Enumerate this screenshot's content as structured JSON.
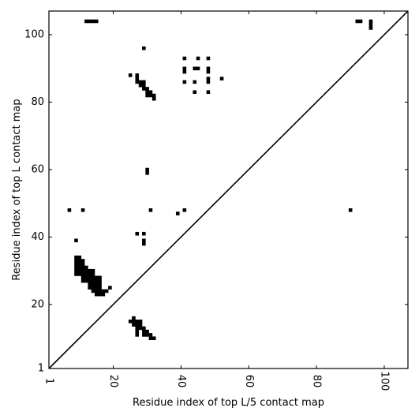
{
  "chart_data": {
    "type": "heatmap",
    "title": "",
    "xlabel": "Residue index of top L/5 contact map",
    "ylabel": "Residue index of top L contact map",
    "xlim": [
      1,
      107
    ],
    "ylim": [
      1,
      107
    ],
    "xticks": [
      1,
      20,
      40,
      60,
      80,
      100
    ],
    "yticks": [
      1,
      20,
      40,
      60,
      80,
      100
    ],
    "xtick_labels": [
      "1",
      "20",
      "40",
      "60",
      "80",
      "100"
    ],
    "ytick_labels": [
      "1",
      "20",
      "40",
      "60",
      "80",
      "100"
    ],
    "grid": false,
    "diagonal": true,
    "cell_color": "#000000",
    "cells": [
      [
        12,
        104
      ],
      [
        13,
        104
      ],
      [
        14,
        104
      ],
      [
        15,
        104
      ],
      [
        92,
        104
      ],
      [
        93,
        104
      ],
      [
        96,
        104
      ],
      [
        96,
        103
      ],
      [
        96,
        102
      ],
      [
        29,
        96
      ],
      [
        41,
        93
      ],
      [
        45,
        93
      ],
      [
        48,
        93
      ],
      [
        41,
        90
      ],
      [
        44,
        90
      ],
      [
        45,
        90
      ],
      [
        48,
        90
      ],
      [
        41,
        89
      ],
      [
        48,
        89
      ],
      [
        25,
        88
      ],
      [
        27,
        88
      ],
      [
        27,
        87
      ],
      [
        52,
        87
      ],
      [
        48,
        87
      ],
      [
        27,
        86
      ],
      [
        28,
        86
      ],
      [
        29,
        86
      ],
      [
        41,
        86
      ],
      [
        44,
        86
      ],
      [
        48,
        86
      ],
      [
        28,
        85
      ],
      [
        29,
        85
      ],
      [
        29,
        84
      ],
      [
        30,
        84
      ],
      [
        30,
        83
      ],
      [
        31,
        83
      ],
      [
        44,
        83
      ],
      [
        48,
        83
      ],
      [
        30,
        82
      ],
      [
        31,
        82
      ],
      [
        32,
        82
      ],
      [
        32,
        81
      ],
      [
        30,
        60
      ],
      [
        30,
        59
      ],
      [
        7,
        48
      ],
      [
        11,
        48
      ],
      [
        31,
        48
      ],
      [
        41,
        48
      ],
      [
        90,
        48
      ],
      [
        39,
        47
      ],
      [
        27,
        41
      ],
      [
        29,
        41
      ],
      [
        29,
        39
      ],
      [
        29,
        38
      ],
      [
        9,
        39
      ],
      [
        9,
        34
      ],
      [
        10,
        34
      ],
      [
        9,
        33
      ],
      [
        10,
        33
      ],
      [
        11,
        33
      ],
      [
        9,
        32
      ],
      [
        10,
        32
      ],
      [
        11,
        32
      ],
      [
        9,
        31
      ],
      [
        10,
        31
      ],
      [
        11,
        31
      ],
      [
        12,
        31
      ],
      [
        9,
        30
      ],
      [
        10,
        30
      ],
      [
        11,
        30
      ],
      [
        12,
        30
      ],
      [
        13,
        30
      ],
      [
        14,
        30
      ],
      [
        9,
        29
      ],
      [
        10,
        29
      ],
      [
        11,
        29
      ],
      [
        12,
        29
      ],
      [
        13,
        29
      ],
      [
        14,
        29
      ],
      [
        11,
        28
      ],
      [
        12,
        28
      ],
      [
        13,
        28
      ],
      [
        14,
        28
      ],
      [
        15,
        28
      ],
      [
        16,
        28
      ],
      [
        11,
        27
      ],
      [
        12,
        27
      ],
      [
        13,
        27
      ],
      [
        14,
        27
      ],
      [
        15,
        27
      ],
      [
        16,
        27
      ],
      [
        13,
        26
      ],
      [
        14,
        26
      ],
      [
        15,
        26
      ],
      [
        16,
        26
      ],
      [
        13,
        25
      ],
      [
        14,
        25
      ],
      [
        15,
        25
      ],
      [
        16,
        25
      ],
      [
        19,
        25
      ],
      [
        14,
        24
      ],
      [
        15,
        24
      ],
      [
        16,
        24
      ],
      [
        17,
        24
      ],
      [
        18,
        24
      ],
      [
        15,
        23
      ],
      [
        16,
        23
      ],
      [
        17,
        23
      ],
      [
        25,
        15
      ],
      [
        26,
        15
      ],
      [
        27,
        15
      ],
      [
        28,
        15
      ],
      [
        26,
        16
      ],
      [
        26,
        14
      ],
      [
        27,
        14
      ],
      [
        28,
        14
      ],
      [
        27,
        13
      ],
      [
        28,
        13
      ],
      [
        29,
        13
      ],
      [
        27,
        12
      ],
      [
        29,
        12
      ],
      [
        30,
        12
      ],
      [
        27,
        11
      ],
      [
        29,
        11
      ],
      [
        30,
        11
      ],
      [
        31,
        11
      ],
      [
        31,
        10
      ],
      [
        32,
        10
      ]
    ]
  }
}
